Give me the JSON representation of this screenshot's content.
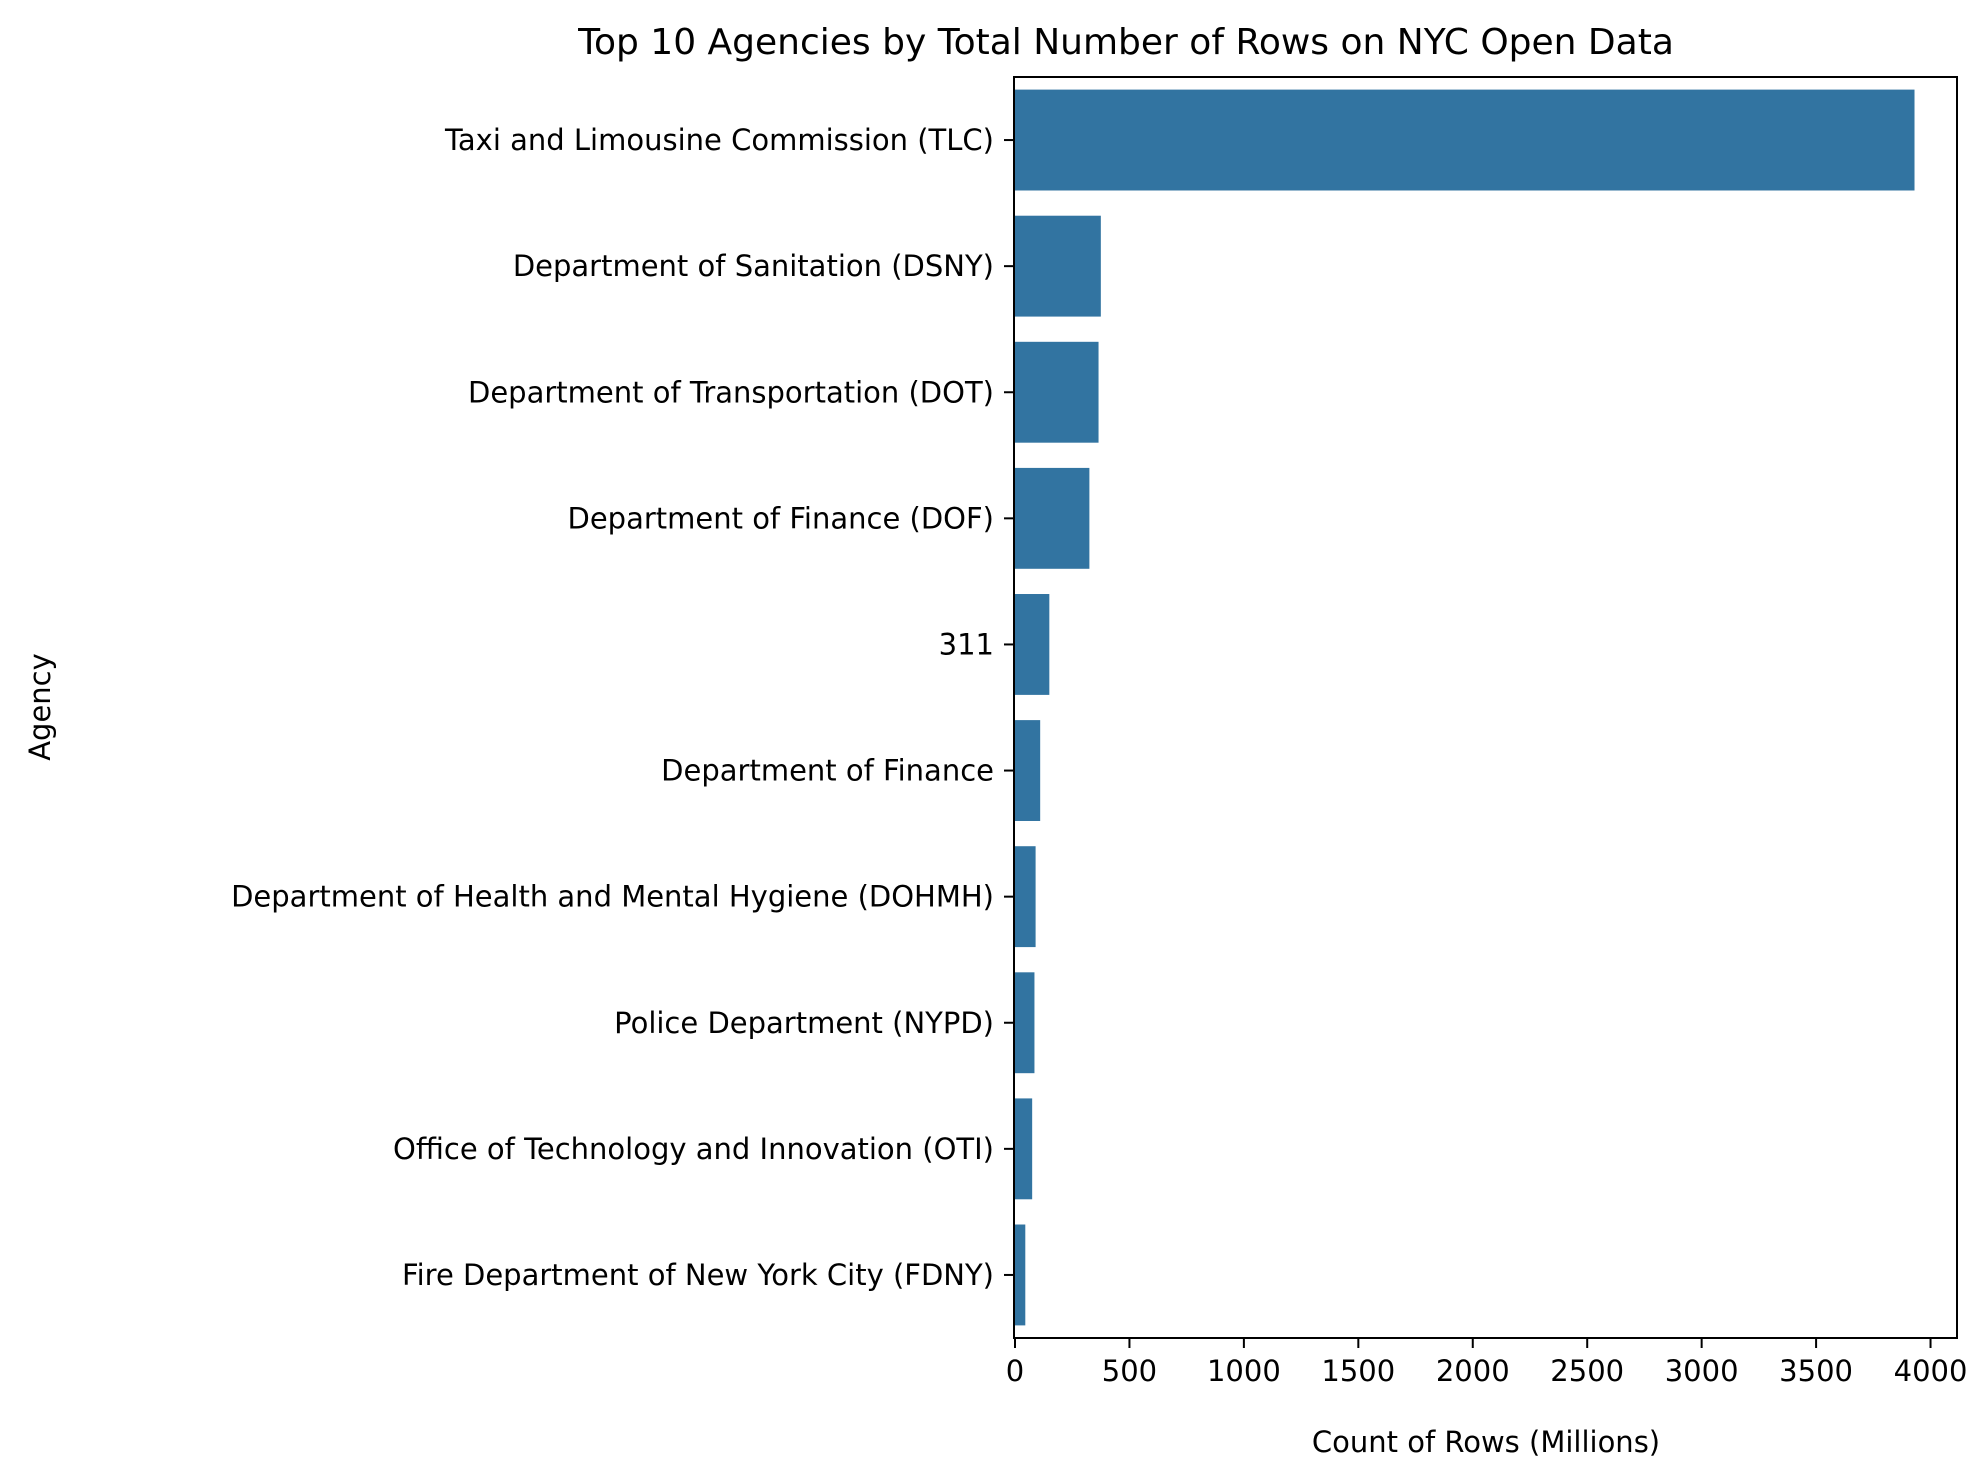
{
  "chart_data": {
    "type": "bar",
    "orientation": "horizontal",
    "title": "Top 10 Agencies by Total Number of Rows on NYC Open Data",
    "xlabel": "Count of Rows (Millions)",
    "ylabel": "Agency",
    "xlim": [
      0,
      4120
    ],
    "xticks": [
      0,
      500,
      1000,
      1500,
      2000,
      2500,
      3000,
      3500,
      4000
    ],
    "grid": false,
    "bar_color": "#3274a1",
    "categories": [
      "Taxi and Limousine Commission (TLC)",
      "Department of Sanitation (DSNY)",
      "Department of Transportation (DOT)",
      "Department of Finance (DOF)",
      "311",
      "Department of Finance",
      "Department of Health and Mental Hygiene (DOHMH)",
      "Police Department (NYPD)",
      "Office of Technology and Innovation (OTI)",
      "Fire Department of New York City (FDNY)"
    ],
    "values": [
      3930,
      375,
      365,
      325,
      150,
      110,
      90,
      85,
      75,
      45
    ]
  }
}
